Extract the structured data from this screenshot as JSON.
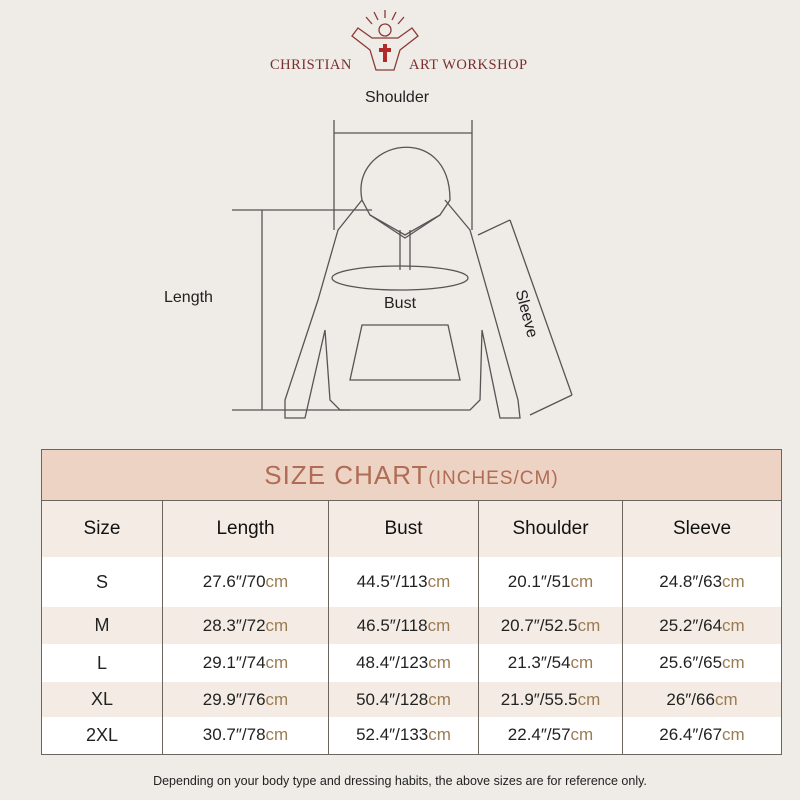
{
  "brand": {
    "left": "CHRISTIAN",
    "right": "ART WORKSHOP",
    "icon": "christ-cross-logo-icon"
  },
  "diagram": {
    "shoulder": "Shoulder",
    "length": "Length",
    "bust": "Bust",
    "sleeve": "Sleeve"
  },
  "table": {
    "title": "SIZE CHART",
    "title_unit": "(INCHES/CM)",
    "headers": [
      "Size",
      "Length",
      "Bust",
      "Shoulder",
      "Sleeve"
    ],
    "rows": [
      {
        "size": "S",
        "cells": [
          [
            "27.6″/70",
            "cm"
          ],
          [
            "44.5″/113",
            "cm"
          ],
          [
            "20.1″/51",
            "cm"
          ],
          [
            "24.8″/63",
            "cm"
          ]
        ]
      },
      {
        "size": "M",
        "cells": [
          [
            "28.3″/72",
            "cm"
          ],
          [
            "46.5″/118",
            "cm"
          ],
          [
            "20.7″/52.5",
            "cm"
          ],
          [
            "25.2″/64",
            "cm"
          ]
        ]
      },
      {
        "size": "L",
        "cells": [
          [
            "29.1″/74",
            "cm"
          ],
          [
            "48.4″/123",
            "cm"
          ],
          [
            "21.3″/54",
            "cm"
          ],
          [
            "25.6″/65",
            "cm"
          ]
        ]
      },
      {
        "size": "XL",
        "cells": [
          [
            "29.9″/76",
            "cm"
          ],
          [
            "50.4″/128",
            "cm"
          ],
          [
            "21.9″/55.5",
            "cm"
          ],
          [
            "26″/66",
            "cm"
          ]
        ]
      },
      {
        "size": "2XL",
        "cells": [
          [
            "30.7″/78",
            "cm"
          ],
          [
            "52.4″/133",
            "cm"
          ],
          [
            "22.4″/57",
            "cm"
          ],
          [
            "26.4″/67",
            "cm"
          ]
        ]
      }
    ]
  },
  "footer": "Depending on your body type and dressing habits, the above sizes are for reference only."
}
